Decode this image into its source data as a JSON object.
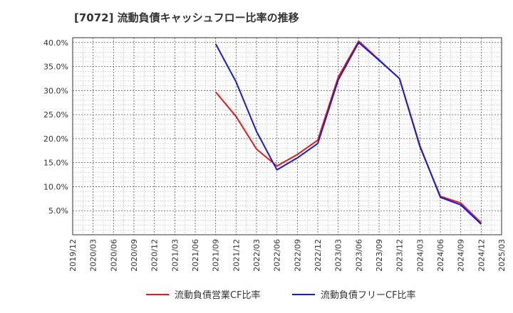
{
  "chart_data": {
    "type": "line",
    "title": "[7072]  流動負債キャッシュフロー比率の推移",
    "xlabel": "",
    "ylabel": "",
    "ylim": [
      0.0,
      41.0
    ],
    "yticks": [
      5.0,
      10.0,
      15.0,
      20.0,
      25.0,
      30.0,
      35.0,
      40.0
    ],
    "ytick_labels": [
      "5.0%",
      "10.0%",
      "15.0%",
      "20.0%",
      "25.0%",
      "30.0%",
      "35.0%",
      "40.0%"
    ],
    "categories": [
      "2019/12",
      "2020/03",
      "2020/06",
      "2020/09",
      "2020/12",
      "2021/03",
      "2021/06",
      "2021/09",
      "2021/12",
      "2022/03",
      "2022/06",
      "2022/09",
      "2022/12",
      "2023/03",
      "2023/06",
      "2023/09",
      "2023/12",
      "2024/03",
      "2024/06",
      "2024/09",
      "2024/12",
      "2025/03"
    ],
    "grid": true,
    "legend_position": "bottom",
    "series": [
      {
        "name": "流動負債営業CF比率",
        "color": "#e8191c",
        "values": [
          null,
          null,
          null,
          null,
          null,
          null,
          null,
          29.7,
          24.6,
          17.8,
          14.3,
          16.7,
          19.7,
          32.8,
          40.3,
          36.4,
          32.5,
          18.3,
          8.0,
          6.6,
          2.5,
          null
        ]
      },
      {
        "name": "流動負債フリーCF比率",
        "color": "#1a1ad6",
        "values": [
          null,
          null,
          null,
          null,
          null,
          null,
          null,
          39.7,
          31.8,
          21.5,
          13.5,
          16.0,
          19.0,
          32.2,
          40.0,
          36.3,
          32.5,
          18.5,
          7.8,
          6.2,
          2.2,
          null
        ]
      }
    ]
  }
}
